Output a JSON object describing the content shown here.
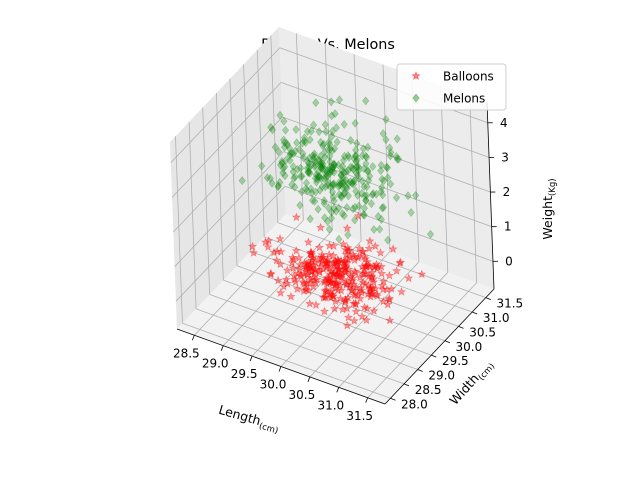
{
  "chart_data": {
    "type": "scatter3d",
    "title": "Ballons Vs. Melons",
    "xlabel": {
      "base": "Length",
      "sub": "(cm)"
    },
    "ylabel": {
      "base": "Width",
      "sub": "(cm)"
    },
    "zlabel": {
      "base": "Weight",
      "sub": "(Kg)"
    },
    "xlim": [
      28.2,
      31.8
    ],
    "ylim": [
      27.8,
      31.8
    ],
    "zlim": [
      -0.8,
      4.6
    ],
    "xticks": [
      "28.5",
      "29.0",
      "29.5",
      "30.0",
      "30.5",
      "31.0",
      "31.5"
    ],
    "yticks": [
      "28.0",
      "28.5",
      "29.0",
      "29.5",
      "30.0",
      "30.5",
      "31.0",
      "31.5"
    ],
    "zticks": [
      "0",
      "1",
      "2",
      "3",
      "4"
    ],
    "grid": true,
    "legend_position": "upper right",
    "series": [
      {
        "name": "Balloons",
        "marker": "star",
        "color": "#ff0000",
        "alpha": 0.4,
        "count": 300,
        "distribution": {
          "x_mean": 30.0,
          "x_sd": 0.5,
          "y_mean": 30.0,
          "y_sd": 0.5,
          "z_mean": 0.0,
          "z_sd": 0.15
        }
      },
      {
        "name": "Melons",
        "marker": "diamond",
        "color": "#008000",
        "alpha": 0.3,
        "count": 300,
        "distribution": {
          "x_mean": 30.0,
          "x_sd": 0.5,
          "y_mean": 30.0,
          "y_sd": 0.5,
          "z_mean": 3.0,
          "z_sd": 0.5
        }
      }
    ]
  }
}
